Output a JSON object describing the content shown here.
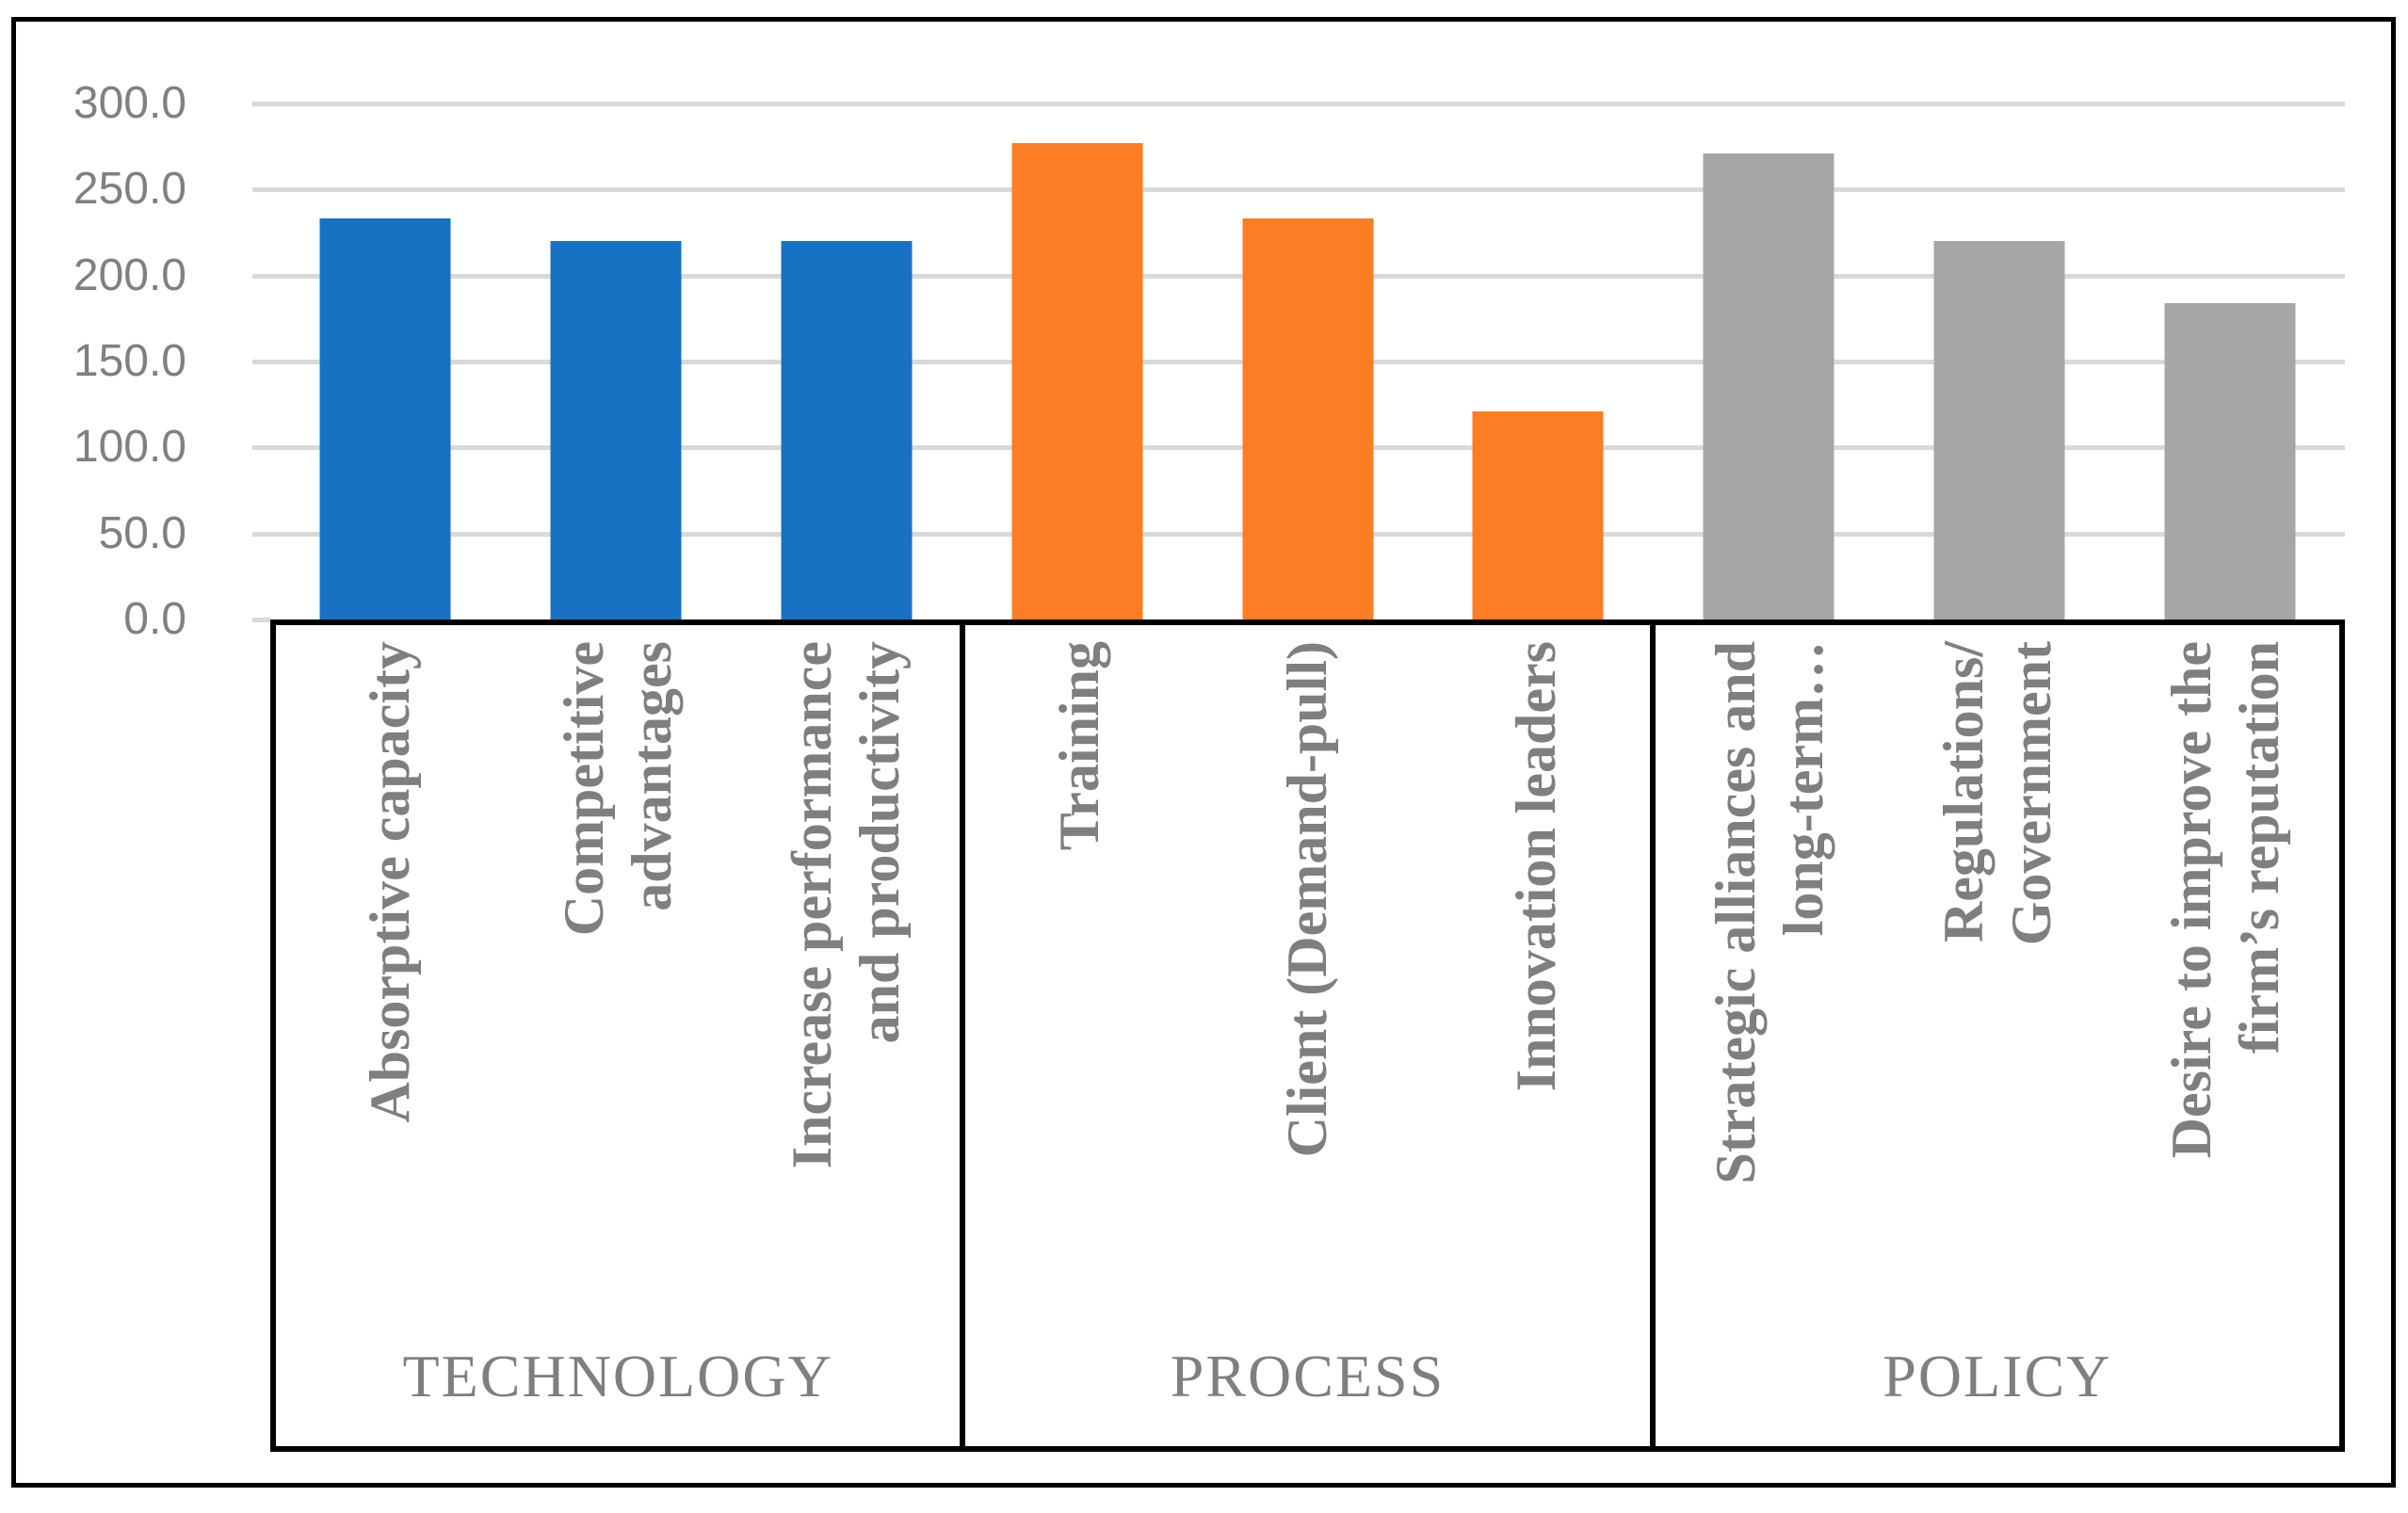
{
  "chart_data": {
    "type": "bar",
    "title": "",
    "xlabel": "",
    "ylabel": "",
    "ylim": [
      0,
      300
    ],
    "ytick_step": 50,
    "ytick_labels": [
      "300.0",
      "250.0",
      "200.0",
      "150.0",
      "100.0",
      "50.0",
      "0.0"
    ],
    "grid": true,
    "legend_position": "none",
    "categories": [
      "Absorptive capacity",
      "Competitive advantages",
      "Increase performance and productivity",
      "Training",
      "Client (Demand-pull)",
      "Innovation leaders",
      "Strategic alliances and long-term…",
      "Regulations/Government",
      "Desire to improve the firm’s reputation"
    ],
    "values": [
      233,
      220,
      220,
      277,
      233,
      121,
      271,
      220,
      184
    ],
    "groups": [
      {
        "name": "TECHNOLOGY",
        "color": "#1772c3",
        "bars": [
          {
            "label": "Absorptive capacity",
            "lines": [
              "Absorptive capacity"
            ],
            "value": 233
          },
          {
            "label": "Competitive advantages",
            "lines": [
              "Competitive",
              "advantages"
            ],
            "value": 220
          },
          {
            "label": "Increase performance and productivity",
            "lines": [
              "Increase performance",
              "and productivity"
            ],
            "value": 220
          }
        ]
      },
      {
        "name": "PROCESS",
        "color": "#fc7d24",
        "bars": [
          {
            "label": "Training",
            "lines": [
              "Training"
            ],
            "value": 277
          },
          {
            "label": "Client (Demand-pull)",
            "lines": [
              "Client (Demand-pull)"
            ],
            "value": 233
          },
          {
            "label": "Innovation leaders",
            "lines": [
              "Innovation leaders"
            ],
            "value": 121
          }
        ]
      },
      {
        "name": "POLICY",
        "color": "#a6a6a6",
        "bars": [
          {
            "label": "Strategic alliances and long-term…",
            "lines": [
              "Strategic alliances and",
              "long-term…"
            ],
            "value": 271
          },
          {
            "label": "Regulations/Government",
            "lines": [
              "Regulations/",
              "Government"
            ],
            "value": 220
          },
          {
            "label": "Desire to improve the firm’s reputation",
            "lines": [
              "Desire to improve the",
              "firm’s reputation"
            ],
            "value": 184
          }
        ]
      }
    ],
    "colors": {
      "gridline": "#d9d9d9",
      "axis_text": "#808080",
      "category_text": "#7f7f7f",
      "axis_line": "#000000",
      "background": "#ffffff"
    }
  }
}
